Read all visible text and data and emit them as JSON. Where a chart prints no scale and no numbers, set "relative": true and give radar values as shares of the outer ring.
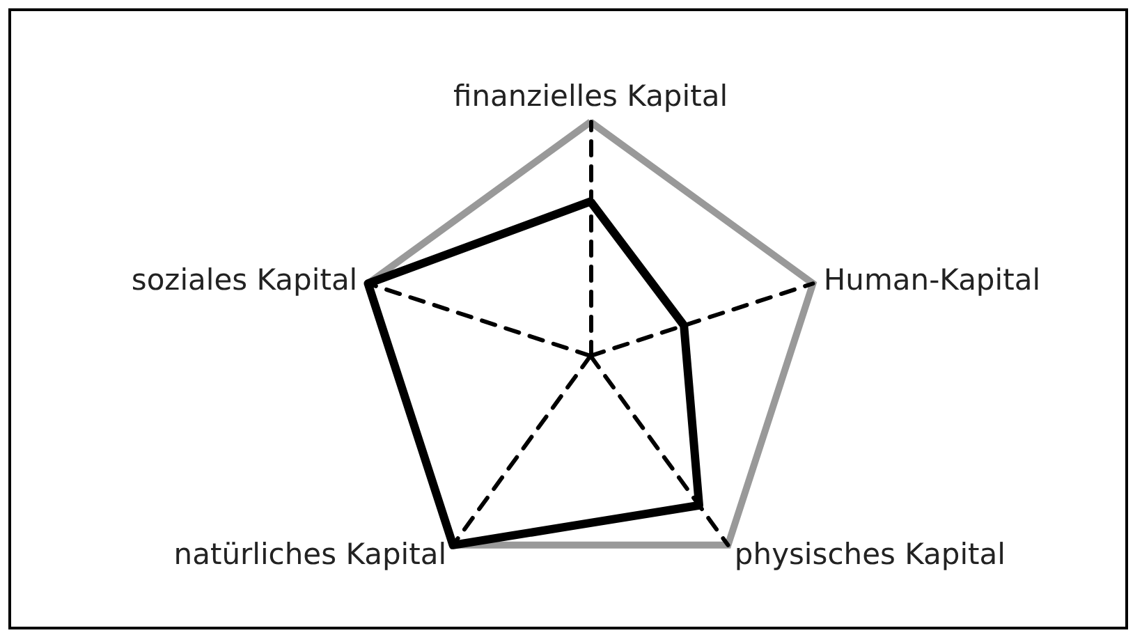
{
  "chart_data": {
    "type": "radar",
    "relative": true,
    "categories": [
      "finanzielles Kapital",
      "Human-Kapital",
      "physisches Kapital",
      "natürliches Kapital",
      "soziales Kapital"
    ],
    "series": [
      {
        "color": "#000000",
        "values": [
          0.66,
          0.42,
          0.79,
          1,
          1
        ]
      }
    ],
    "marker": "none"
  }
}
